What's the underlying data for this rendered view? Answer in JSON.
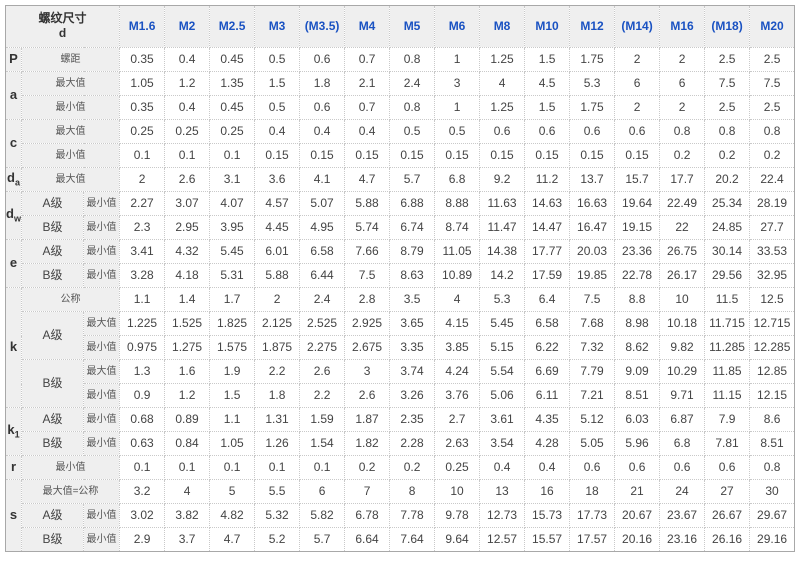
{
  "table": {
    "corner": {
      "line1": "螺纹尺寸",
      "line2": "d"
    },
    "columns": [
      "M1.6",
      "M2",
      "M2.5",
      "M3",
      "(M3.5)",
      "M4",
      "M5",
      "M6",
      "M8",
      "M10",
      "M12",
      "(M14)",
      "M16",
      "(M18)",
      "M20"
    ],
    "groups": [
      {
        "symbol": "P",
        "subscript": "",
        "rows": [
          {
            "grade": "",
            "label": "螺距",
            "values": [
              0.35,
              0.4,
              0.45,
              0.5,
              0.6,
              0.7,
              0.8,
              1,
              1.25,
              1.5,
              1.75,
              2,
              2,
              2.5,
              2.5
            ]
          }
        ]
      },
      {
        "symbol": "a",
        "subscript": "",
        "rows": [
          {
            "grade": "",
            "label": "最大值",
            "values": [
              1.05,
              1.2,
              1.35,
              1.5,
              1.8,
              2.1,
              2.4,
              3,
              4,
              4.5,
              5.3,
              6,
              6,
              7.5,
              7.5
            ]
          },
          {
            "grade": "",
            "label": "最小值",
            "values": [
              0.35,
              0.4,
              0.45,
              0.5,
              0.6,
              0.7,
              0.8,
              1,
              1.25,
              1.5,
              1.75,
              2,
              2,
              2.5,
              2.5
            ]
          }
        ]
      },
      {
        "symbol": "c",
        "subscript": "",
        "rows": [
          {
            "grade": "",
            "label": "最大值",
            "values": [
              0.25,
              0.25,
              0.25,
              0.4,
              0.4,
              0.4,
              0.5,
              0.5,
              0.6,
              0.6,
              0.6,
              0.6,
              0.8,
              0.8,
              0.8
            ]
          },
          {
            "grade": "",
            "label": "最小值",
            "values": [
              0.1,
              0.1,
              0.1,
              0.15,
              0.15,
              0.15,
              0.15,
              0.15,
              0.15,
              0.15,
              0.15,
              0.15,
              0.2,
              0.2,
              0.2
            ]
          }
        ]
      },
      {
        "symbol": "d",
        "subscript": "a",
        "rows": [
          {
            "grade": "",
            "label": "最大值",
            "values": [
              2,
              2.6,
              3.1,
              3.6,
              4.1,
              4.7,
              5.7,
              6.8,
              9.2,
              11.2,
              13.7,
              15.7,
              17.7,
              20.2,
              22.4
            ]
          }
        ]
      },
      {
        "symbol": "d",
        "subscript": "w",
        "rows": [
          {
            "grade": "A级",
            "label": "最小值",
            "values": [
              2.27,
              3.07,
              4.07,
              4.57,
              5.07,
              5.88,
              6.88,
              8.88,
              11.63,
              14.63,
              16.63,
              19.64,
              22.49,
              25.34,
              28.19
            ]
          },
          {
            "grade": "B级",
            "label": "最小值",
            "values": [
              2.3,
              2.95,
              3.95,
              4.45,
              4.95,
              5.74,
              6.74,
              8.74,
              11.47,
              14.47,
              16.47,
              19.15,
              22,
              24.85,
              27.7
            ]
          }
        ]
      },
      {
        "symbol": "e",
        "subscript": "",
        "rows": [
          {
            "grade": "A级",
            "label": "最小值",
            "values": [
              3.41,
              4.32,
              5.45,
              6.01,
              6.58,
              7.66,
              8.79,
              11.05,
              14.38,
              17.77,
              20.03,
              23.36,
              26.75,
              30.14,
              33.53
            ]
          },
          {
            "grade": "B级",
            "label": "最小值",
            "values": [
              3.28,
              4.18,
              5.31,
              5.88,
              6.44,
              7.5,
              8.63,
              10.89,
              14.2,
              17.59,
              19.85,
              22.78,
              26.17,
              29.56,
              32.95
            ]
          }
        ]
      },
      {
        "symbol": "k",
        "subscript": "",
        "rows": [
          {
            "grade": "",
            "label": "公称",
            "values": [
              1.1,
              1.4,
              1.7,
              2,
              2.4,
              2.8,
              3.5,
              4,
              5.3,
              6.4,
              7.5,
              8.8,
              10,
              11.5,
              12.5
            ]
          },
          {
            "grade": "A级",
            "label": "最大值",
            "values": [
              1.225,
              1.525,
              1.825,
              2.125,
              2.525,
              2.925,
              3.65,
              4.15,
              5.45,
              6.58,
              7.68,
              8.98,
              10.18,
              11.715,
              12.715
            ]
          },
          {
            "grade": "A级",
            "label": "最小值",
            "values": [
              0.975,
              1.275,
              1.575,
              1.875,
              2.275,
              2.675,
              3.35,
              3.85,
              5.15,
              6.22,
              7.32,
              8.62,
              9.82,
              11.285,
              12.285
            ]
          },
          {
            "grade": "B级",
            "label": "最大值",
            "values": [
              1.3,
              1.6,
              1.9,
              2.2,
              2.6,
              3,
              3.74,
              4.24,
              5.54,
              6.69,
              7.79,
              9.09,
              10.29,
              11.85,
              12.85
            ]
          },
          {
            "grade": "B级",
            "label": "最小值",
            "values": [
              0.9,
              1.2,
              1.5,
              1.8,
              2.2,
              2.6,
              3.26,
              3.76,
              5.06,
              6.11,
              7.21,
              8.51,
              9.71,
              11.15,
              12.15
            ]
          }
        ]
      },
      {
        "symbol": "k",
        "subscript": "1",
        "rows": [
          {
            "grade": "A级",
            "label": "最小值",
            "values": [
              0.68,
              0.89,
              1.1,
              1.31,
              1.59,
              1.87,
              2.35,
              2.7,
              3.61,
              4.35,
              5.12,
              6.03,
              6.87,
              7.9,
              8.6
            ]
          },
          {
            "grade": "B级",
            "label": "最小值",
            "values": [
              0.63,
              0.84,
              1.05,
              1.26,
              1.54,
              1.82,
              2.28,
              2.63,
              3.54,
              4.28,
              5.05,
              5.96,
              6.8,
              7.81,
              8.51
            ]
          }
        ]
      },
      {
        "symbol": "r",
        "subscript": "",
        "rows": [
          {
            "grade": "",
            "label": "最小值",
            "values": [
              0.1,
              0.1,
              0.1,
              0.1,
              0.1,
              0.2,
              0.2,
              0.25,
              0.4,
              0.4,
              0.6,
              0.6,
              0.6,
              0.6,
              0.8
            ]
          }
        ]
      },
      {
        "symbol": "s",
        "subscript": "",
        "rows": [
          {
            "grade": "",
            "label": "最大值=公称",
            "values": [
              3.2,
              4,
              5,
              5.5,
              6,
              7,
              8,
              10,
              13,
              16,
              18,
              21,
              24,
              27,
              30
            ]
          },
          {
            "grade": "A级",
            "label": "最小值",
            "values": [
              3.02,
              3.82,
              4.82,
              5.32,
              5.82,
              6.78,
              7.78,
              9.78,
              12.73,
              15.73,
              17.73,
              20.67,
              23.67,
              26.67,
              29.67
            ]
          },
          {
            "grade": "B级",
            "label": "最小值",
            "values": [
              2.9,
              3.7,
              4.7,
              5.2,
              5.7,
              6.64,
              7.64,
              9.64,
              12.57,
              15.57,
              17.57,
              20.16,
              23.16,
              26.16,
              29.16
            ]
          }
        ]
      }
    ]
  }
}
